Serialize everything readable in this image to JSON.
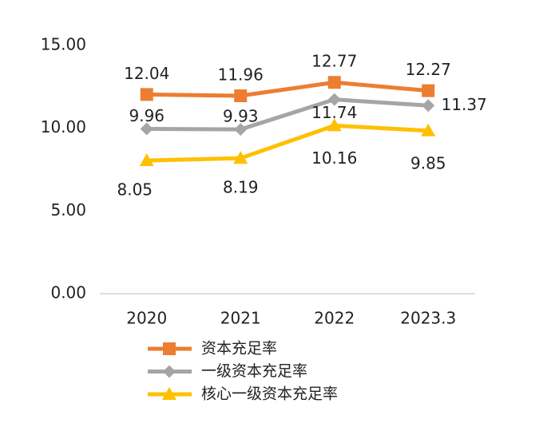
{
  "chart_data": {
    "type": "line",
    "categories": [
      "2020",
      "2021",
      "2022",
      "2023.3"
    ],
    "series": [
      {
        "name": "资本充足率",
        "color": "#ED7D31",
        "marker": "square",
        "values": [
          12.04,
          11.96,
          12.77,
          12.27
        ]
      },
      {
        "name": "一级资本充足率",
        "color": "#A5A5A5",
        "marker": "diamond",
        "values": [
          9.96,
          9.93,
          11.74,
          11.37
        ]
      },
      {
        "name": "核心一级资本充足率",
        "color": "#FFC000",
        "marker": "triangle",
        "values": [
          8.05,
          8.19,
          10.16,
          9.85
        ]
      }
    ],
    "ylim": [
      0,
      15
    ],
    "yticks": [
      {
        "value": 0,
        "label": "0.00"
      },
      {
        "value": 5,
        "label": "5.00"
      },
      {
        "value": 10,
        "label": "10.00"
      },
      {
        "value": 15,
        "label": "15.00"
      }
    ],
    "grid": false,
    "legend": "bottom"
  }
}
